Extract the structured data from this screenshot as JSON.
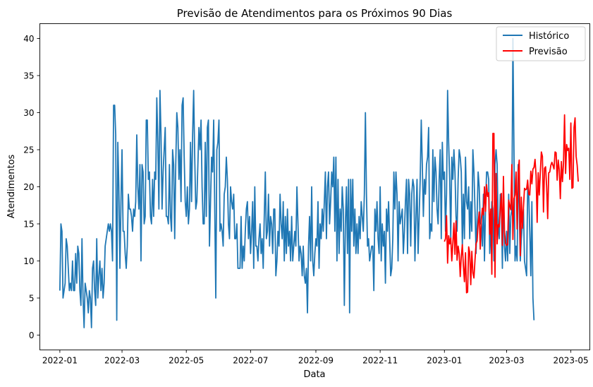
{
  "chart_data": {
    "type": "line",
    "title": "Previsão de Atendimentos para os Próximos 90 Dias",
    "xlabel": "Data",
    "ylabel": "Atendimentos",
    "xlim": [
      "2021-12-13",
      "2023-05-19"
    ],
    "ylim": [
      -2,
      42
    ],
    "x_ticks": [
      "2022-01",
      "2022-03",
      "2022-05",
      "2022-07",
      "2022-09",
      "2022-11",
      "2023-01",
      "2023-03",
      "2023-05"
    ],
    "y_ticks": [
      0,
      5,
      10,
      15,
      20,
      25,
      30,
      35,
      40
    ],
    "grid": false,
    "legend_position": "top-right",
    "series": [
      {
        "name": "Histórico",
        "color": "#1f77b4",
        "x_start": "2022-01-01",
        "x_step_days": 1,
        "values": [
          6,
          15,
          14,
          5,
          6,
          7,
          13,
          12,
          9,
          6,
          7,
          6,
          10,
          6,
          6,
          11,
          7,
          12,
          11,
          6,
          4,
          13,
          5,
          1,
          7,
          6,
          5,
          3,
          6,
          5,
          1,
          9,
          10,
          6,
          4,
          13,
          5,
          8,
          10,
          6,
          9,
          5,
          7,
          12,
          13,
          14,
          15,
          14,
          15,
          14,
          10,
          31,
          31,
          27,
          2,
          26,
          20,
          9,
          18,
          25,
          14,
          14,
          11,
          9,
          12,
          19,
          17,
          17,
          16,
          14,
          17,
          16,
          18,
          27,
          20,
          17,
          23,
          10,
          23,
          22,
          15,
          16,
          29,
          29,
          21,
          22,
          16,
          15,
          21,
          16,
          22,
          21,
          32,
          26,
          17,
          33,
          27,
          17,
          22,
          25,
          28,
          16,
          16,
          15,
          23,
          16,
          14,
          25,
          23,
          13,
          23,
          30,
          28,
          21,
          25,
          18,
          31,
          32,
          24,
          18,
          16,
          20,
          15,
          17,
          26,
          18,
          27,
          33,
          24,
          17,
          18,
          23,
          28,
          25,
          29,
          20,
          15,
          15,
          26,
          16,
          28,
          29,
          12,
          18,
          24,
          22,
          29,
          17,
          5,
          25,
          26,
          29,
          14,
          15,
          14,
          12,
          19,
          20,
          24,
          21,
          15,
          13,
          20,
          18,
          17,
          19,
          13,
          13,
          15,
          9,
          9,
          9,
          16,
          9,
          12,
          10,
          14,
          17,
          18,
          13,
          16,
          11,
          14,
          18,
          9,
          20,
          12,
          12,
          10,
          13,
          15,
          11,
          13,
          9,
          16,
          22,
          13,
          14,
          19,
          12,
          16,
          15,
          11,
          17,
          17,
          8,
          10,
          14,
          12,
          19,
          15,
          13,
          18,
          10,
          16,
          11,
          17,
          12,
          14,
          10,
          16,
          10,
          12,
          14,
          12,
          20,
          15,
          10,
          12,
          11,
          8,
          12,
          8,
          7,
          9,
          3,
          12,
          16,
          10,
          20,
          10,
          8,
          11,
          13,
          12,
          18,
          9,
          15,
          13,
          17,
          14,
          18,
          22,
          13,
          20,
          22,
          15,
          18,
          22,
          20,
          24,
          14,
          24,
          10,
          21,
          11,
          17,
          14,
          20,
          17,
          4,
          15,
          20,
          11,
          21,
          3,
          21,
          14,
          21,
          12,
          17,
          11,
          15,
          11,
          16,
          13,
          18,
          16,
          14,
          19,
          30,
          19,
          12,
          13,
          10,
          11,
          12,
          12,
          6,
          17,
          14,
          18,
          13,
          11,
          20,
          10,
          15,
          12,
          14,
          7,
          17,
          14,
          18,
          13,
          8,
          9,
          13,
          22,
          17,
          22,
          19,
          10,
          18,
          15,
          16,
          17,
          11,
          14,
          18,
          21,
          11,
          21,
          19,
          12,
          19,
          21,
          20,
          10,
          16,
          21,
          11,
          16,
          21,
          29,
          23,
          16,
          21,
          19,
          23,
          24,
          28,
          13,
          15,
          14,
          25,
          18,
          24,
          22,
          17,
          15,
          21,
          25,
          13,
          26,
          21,
          22,
          14,
          19,
          33,
          26,
          21,
          13,
          24,
          21,
          25,
          22,
          16,
          14,
          21,
          25,
          24,
          22,
          12,
          19,
          13,
          24,
          18,
          17,
          20,
          13,
          18,
          14,
          25,
          22,
          17,
          11,
          16,
          22,
          20,
          15,
          15,
          12,
          19,
          10,
          17,
          22,
          22,
          21,
          11,
          14,
          18,
          17,
          10,
          23,
          25,
          23,
          15,
          13,
          19,
          18,
          9,
          20,
          12,
          10,
          14,
          10,
          19,
          11,
          16,
          17,
          40,
          25,
          10,
          12,
          10,
          23,
          17,
          10,
          13,
          15,
          17,
          10,
          9,
          8,
          20,
          19,
          14,
          8,
          18,
          5,
          2
        ]
      },
      {
        "name": "Previsão",
        "color": "#ff0000",
        "x_start": "2023-01-01",
        "x_step_days": 1,
        "values": [
          12.6,
          13.0,
          16.1,
          9.7,
          13.4,
          12.3,
          13.1,
          10.0,
          12.4,
          15.1,
          10.9,
          15.4,
          10.1,
          12.0,
          11.0,
          7.9,
          10.6,
          12.2,
          9.3,
          7.2,
          11.1,
          5.7,
          5.8,
          11.9,
          11.1,
          6.8,
          11.3,
          8.4,
          7.7,
          10.1,
          12.3,
          12.7,
          15.1,
          16.6,
          11.6,
          15.5,
          17.1,
          16.2,
          20.0,
          16.7,
          20.3,
          18.7,
          19.2,
          13.6,
          17.0,
          8.2,
          27.2,
          27.2,
          7.8,
          21.8,
          12.3,
          14.9,
          14.6,
          17.0,
          19.1,
          12.1,
          21.4,
          13.9,
          12.4,
          12.1,
          12.2,
          18.2,
          17.4,
          16.9,
          23.0,
          12.9,
          18.4,
          18.9,
          22.0,
          14.3,
          22.0,
          23.6,
          10.7,
          18.6,
          14.4,
          17.2,
          19.8,
          19.6,
          19.7,
          20.9,
          19.0,
          18.9,
          22.1,
          20.4,
          22.4,
          22.6,
          23.7,
          21.5,
          15.2,
          21.9,
          18.9,
          21.9,
          24.7,
          24.1,
          16.6,
          22.5,
          22.7,
          20.1,
          15.7,
          21.9,
          22.0,
          22.9,
          23.3,
          22.9,
          22.4,
          24.7,
          24.6,
          20.9,
          23.6,
          22.3,
          18.4,
          23.4,
          20.7,
          23.1,
          29.7,
          21.8,
          25.7,
          24.9,
          25.2,
          21.0,
          28.6,
          19.8,
          19.9,
          28.0,
          29.3,
          24.1,
          22.9,
          20.7
        ]
      }
    ]
  }
}
